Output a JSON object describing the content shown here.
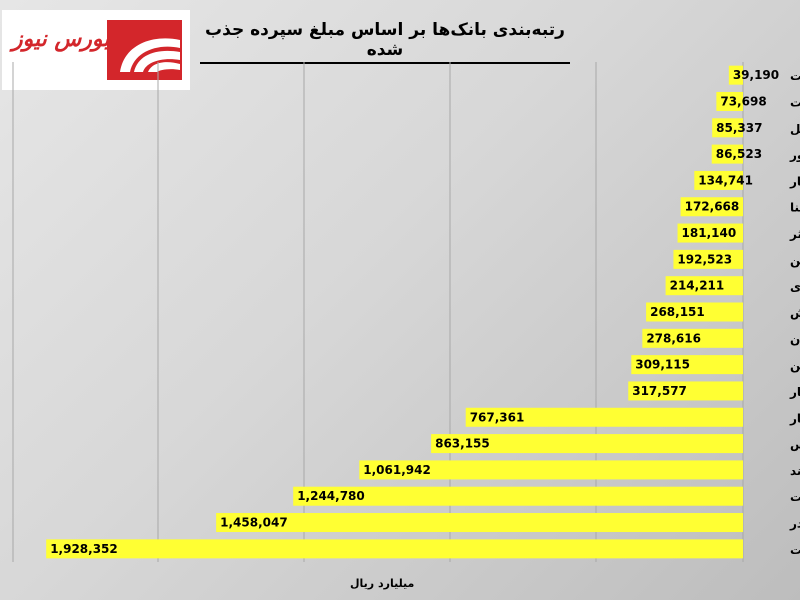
{
  "logo": {
    "text": "بورس نیوز"
  },
  "chart_data": {
    "type": "bar",
    "orientation": "horizontal",
    "title": "رتبه‌بندی بانک‌ها بر اساس مبلغ سپرده جذب شده",
    "xlabel": "میلیارد ریال",
    "ylabel": "",
    "grid": true,
    "bar_color": "#ffff33",
    "xlim": [
      0,
      2000000
    ],
    "categories": [
      "حکمت",
      "وپست",
      "وملل",
      "وخاور",
      "وکار",
      "وسینا",
      "وکوثر",
      "وزمین",
      "دی",
      "وگردش",
      "سامان",
      "ونوین",
      "وانصار",
      "وپاسار",
      "وپارس",
      "وآیند",
      "وتجارت",
      "وبصادر",
      "وبملت"
    ],
    "values": [
      39190,
      73698,
      85337,
      86523,
      134741,
      172668,
      181140,
      192523,
      214211,
      268151,
      278616,
      309115,
      317577,
      767361,
      863155,
      1061942,
      1244780,
      1458047,
      1928352
    ],
    "value_labels": [
      "39,190",
      "73,698",
      "85,337",
      "86,523",
      "134,741",
      "172,668",
      "181,140",
      "192,523",
      "214,211",
      "268,151",
      "278,616",
      "309,115",
      "317,577",
      "767,361",
      "863,155",
      "1,061,942",
      "1,244,780",
      "1,458,047",
      "1,928,352"
    ]
  }
}
